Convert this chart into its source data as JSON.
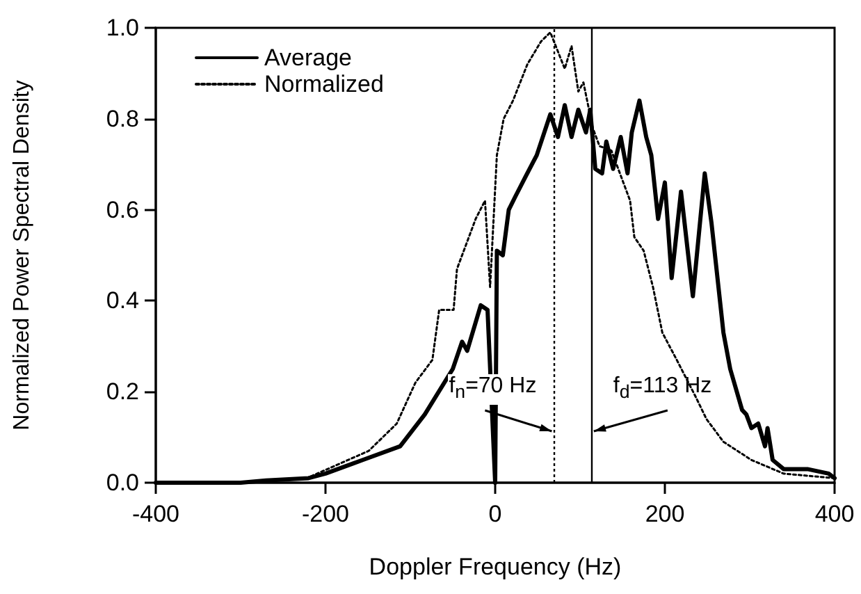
{
  "chart_data": {
    "type": "line",
    "xlabel": "Doppler Frequency (Hz)",
    "ylabel": "Normalized Power Spectral Density",
    "xlim": [
      -400,
      400
    ],
    "xticks": [
      -400,
      -200,
      0,
      200,
      400
    ],
    "ylim": [
      0,
      1
    ],
    "yticks": [
      {
        "value": 0,
        "label": "0.0"
      },
      0.2,
      0.4,
      0.6,
      0.8,
      {
        "value": 1,
        "label": "1.0"
      }
    ],
    "grid": false,
    "legend": "top left",
    "marker": "none",
    "series": [
      {
        "name": "Average",
        "color": "#000000",
        "line_style": "solid",
        "x": [
          -400,
          -300,
          -270,
          -220,
          -200,
          -156,
          -112,
          -83,
          -50,
          -39,
          -33,
          -17,
          -9,
          0,
          2,
          9,
          16,
          24,
          35,
          49,
          65,
          74,
          82,
          90,
          98,
          107,
          112,
          118,
          126,
          131,
          139,
          148,
          156,
          161,
          170,
          178,
          184,
          192,
          200,
          208,
          219,
          233,
          247,
          255,
          269,
          277,
          291,
          296,
          302,
          310,
          318,
          321,
          327,
          340,
          368,
          393,
          400
        ],
        "values": [
          0,
          0,
          0.005,
          0.01,
          0.02,
          0.05,
          0.08,
          0.15,
          0.25,
          0.31,
          0.29,
          0.39,
          0.38,
          0,
          0.51,
          0.5,
          0.6,
          0.63,
          0.67,
          0.72,
          0.81,
          0.76,
          0.83,
          0.76,
          0.82,
          0.77,
          0.82,
          0.69,
          0.68,
          0.75,
          0.69,
          0.76,
          0.68,
          0.77,
          0.84,
          0.76,
          0.72,
          0.58,
          0.66,
          0.45,
          0.64,
          0.41,
          0.68,
          0.57,
          0.33,
          0.25,
          0.16,
          0.15,
          0.12,
          0.13,
          0.08,
          0.12,
          0.05,
          0.03,
          0.03,
          0.02,
          0.01
        ]
      },
      {
        "name": "Normalized",
        "color": "#000000",
        "line_style": "dotted",
        "x": [
          -400,
          -300,
          -222,
          -149,
          -116,
          -94,
          -74,
          -66,
          -49,
          -45,
          -23,
          -12,
          -6,
          2,
          10,
          21,
          38,
          54,
          65,
          82,
          90,
          98,
          104,
          115,
          123,
          137,
          159,
          164,
          175,
          186,
          197,
          214,
          236,
          249,
          269,
          302,
          340,
          400
        ],
        "values": [
          0,
          0,
          0.01,
          0.07,
          0.13,
          0.22,
          0.27,
          0.38,
          0.38,
          0.47,
          0.58,
          0.62,
          0.43,
          0.72,
          0.8,
          0.84,
          0.92,
          0.97,
          0.99,
          0.91,
          0.96,
          0.86,
          0.88,
          0.78,
          0.74,
          0.73,
          0.62,
          0.54,
          0.51,
          0.43,
          0.33,
          0.27,
          0.19,
          0.14,
          0.09,
          0.05,
          0.02,
          0.01
        ]
      }
    ],
    "ref_lines": [
      {
        "axis": "x",
        "value": 70,
        "label": "f$_{n}$=70 Hz",
        "line_style": "dotted"
      },
      {
        "axis": "x",
        "value": 113,
        "label": "f$_{d}$=113 Hz",
        "line_style": "solid"
      }
    ]
  }
}
